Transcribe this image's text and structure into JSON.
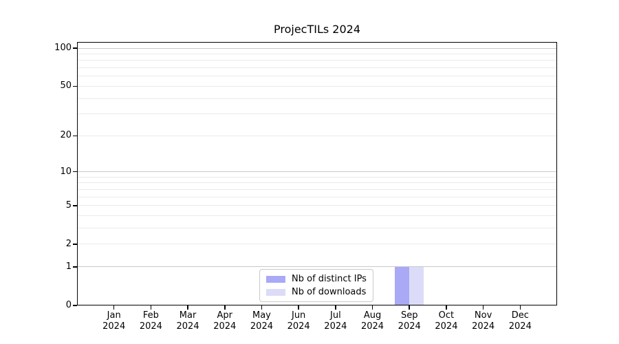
{
  "title": "ProjecTILs 2024",
  "chart_data": {
    "type": "bar",
    "title": "ProjecTILs 2024",
    "categories": [
      "Jan",
      "Feb",
      "Mar",
      "Apr",
      "May",
      "Jun",
      "Jul",
      "Aug",
      "Sep",
      "Oct",
      "Nov",
      "Dec"
    ],
    "category_year": "2024",
    "series": [
      {
        "name": "Nb of distinct IPs",
        "color": "#a9a9f6",
        "values": [
          0,
          0,
          0,
          0,
          0,
          0,
          0,
          0,
          1,
          0,
          0,
          0
        ]
      },
      {
        "name": "Nb of downloads",
        "color": "#dcdcf8",
        "values": [
          0,
          0,
          0,
          0,
          0,
          0,
          0,
          0,
          1,
          0,
          0,
          0
        ]
      }
    ],
    "xlabel": "",
    "ylabel": "",
    "yscale": "log1p",
    "ylim": [
      0,
      112
    ],
    "ytick_labels": [
      "0",
      "1",
      "2",
      "5",
      "10",
      "20",
      "50",
      "100"
    ],
    "ytick_values": [
      0,
      1,
      2,
      5,
      10,
      20,
      50,
      100
    ],
    "major_gridlines": [
      1,
      10,
      100
    ],
    "minor_gridlines": [
      2,
      3,
      4,
      5,
      6,
      7,
      8,
      9,
      20,
      30,
      40,
      50,
      60,
      70,
      80,
      90
    ],
    "grid": true,
    "legend_position": "lower center"
  },
  "colors": {
    "series1": "#a9a9f6",
    "series2": "#dcdcf8",
    "spine": "#000000",
    "grid_major": "#c9c9c9",
    "grid_minor": "#eaeaea",
    "legend_border": "#c9c9c9",
    "background": "#ffffff"
  }
}
